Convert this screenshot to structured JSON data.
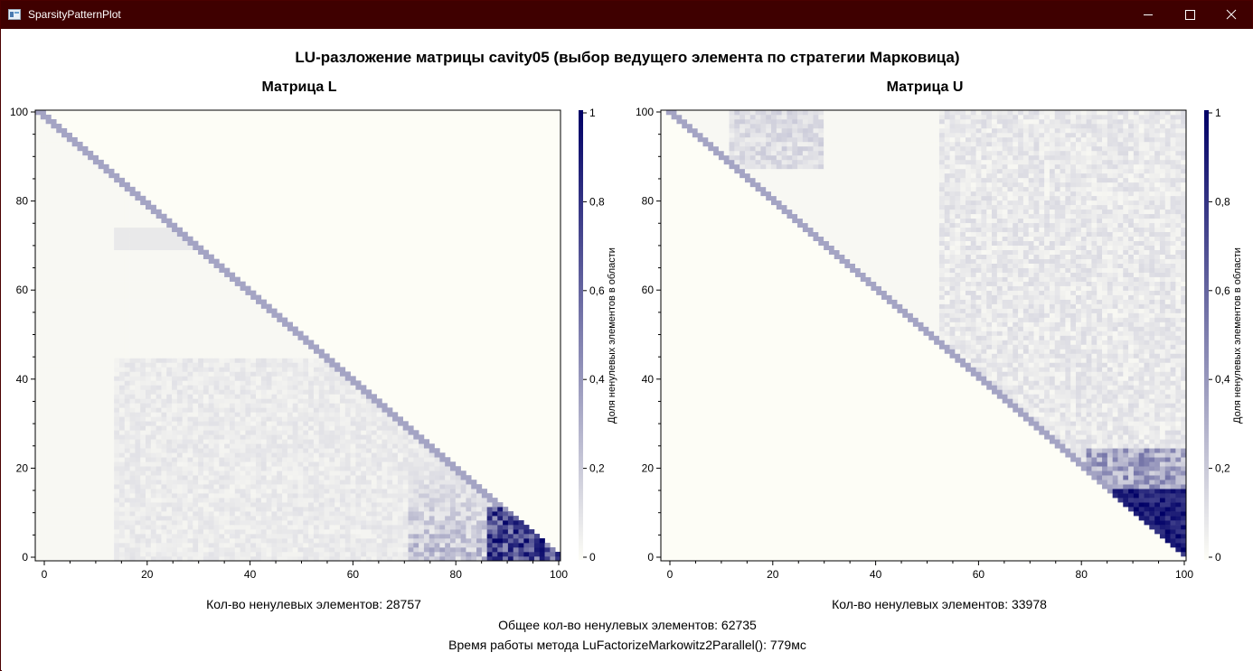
{
  "window": {
    "title": "SparsityPatternPlot",
    "controls": {
      "minimize": "minimize",
      "maximize": "maximize",
      "close": "close"
    }
  },
  "chart_data": {
    "title": "LU-разложение матрицы cavity05 (выбор ведущего элемента по стратегии Марковица)",
    "type": "heatmap",
    "panels": [
      {
        "title": "Матрица L",
        "nnz_label": "Кол-во ненулевых элементов: 28757",
        "triangle": "lower",
        "xlim": [
          0,
          100
        ],
        "ylim": [
          0,
          100
        ],
        "x_ticks": [
          "0",
          "20",
          "40",
          "60",
          "80",
          "100"
        ],
        "y_ticks": [
          "0",
          "20",
          "40",
          "60",
          "80",
          "100"
        ],
        "colorbar_ticks": [
          "0",
          "0,2",
          "0,4",
          "0,6",
          "0,8",
          "1"
        ],
        "colorbar_label": "Доля ненулевых элементов в области"
      },
      {
        "title": "Матрица U",
        "nnz_label": "Кол-во ненулевых элементов: 33978",
        "triangle": "upper",
        "xlim": [
          0,
          100
        ],
        "ylim": [
          0,
          100
        ],
        "x_ticks": [
          "0",
          "20",
          "40",
          "60",
          "80",
          "100"
        ],
        "y_ticks": [
          "0",
          "20",
          "40",
          "60",
          "80",
          "100"
        ],
        "colorbar_ticks": [
          "0",
          "0,2",
          "0,4",
          "0,6",
          "0,8",
          "1"
        ],
        "colorbar_label": "Доля ненулевых элементов в области"
      }
    ],
    "colorscale": {
      "low": "#fdfdf6",
      "high": "#000066"
    }
  },
  "footer": {
    "total": "Общее кол-во ненулевых элементов: 62735",
    "time": "Время работы метода LuFactorizeMarkowitz2Parallel(): 779мс"
  }
}
